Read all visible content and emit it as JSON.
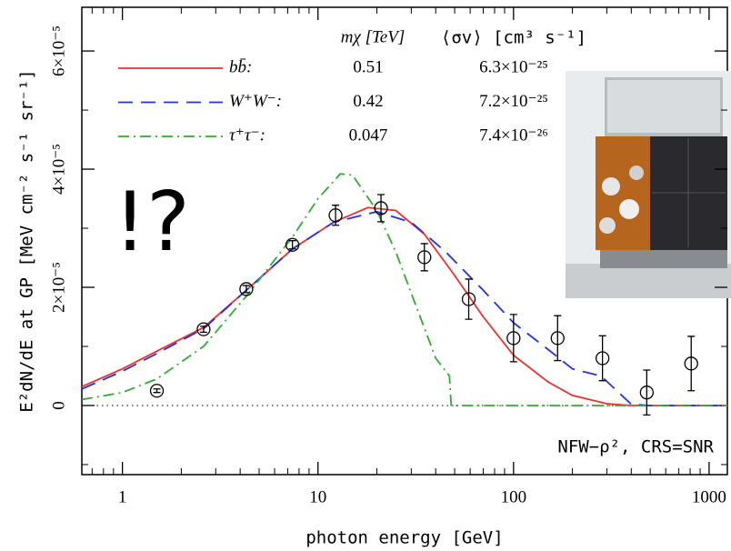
{
  "chart_data": {
    "type": "line",
    "x_label": "photon energy [GeV]",
    "y_label": "E²dN/dE at GP [MeV cm⁻² s⁻¹ sr⁻¹]",
    "xscale": "log",
    "xlim": [
      0.62,
      1240
    ],
    "xticks": [
      1,
      10,
      100,
      1000
    ],
    "ylim": [
      -1.17e-05,
      6.74e-05
    ],
    "yticks": [
      0,
      {
        "value": 2e-05,
        "label": "2×10⁻⁵"
      },
      {
        "value": 4e-05,
        "label": "4×10⁻⁵"
      },
      {
        "value": 6e-05,
        "label": "6×10⁻⁵"
      }
    ],
    "legend_headers": [
      "mχ [TeV]",
      "⟨σv⟩ [cm³ s⁻¹]"
    ],
    "annotations": [
      "NFW−ρ², CRS=SNR",
      "!?"
    ],
    "series": [
      {
        "name": "bb̄:",
        "mass": "0.51",
        "cross_section": "6.3×10⁻²⁵",
        "color": "#e8322f",
        "line_style": "solid",
        "x": [
          0.62,
          1,
          1.5,
          2.6,
          4.3,
          7.4,
          12,
          18,
          25,
          35,
          50,
          70,
          100,
          150,
          200,
          300,
          400,
          1240
        ],
        "values": [
          3.2e-06,
          6.2e-06,
          9.2e-06,
          1.32e-05,
          1.95e-05,
          2.65e-05,
          3.1e-05,
          3.35e-05,
          3.3e-05,
          2.9e-05,
          2.2e-05,
          1.5e-05,
          8.5e-06,
          4e-06,
          1.7e-06,
          3e-07,
          0,
          0
        ]
      },
      {
        "name": "W⁺W⁻:",
        "mass": "0.42",
        "cross_section": "7.2×10⁻²⁵",
        "color": "#2233dd",
        "line_style": "dashed",
        "x": [
          0.62,
          1,
          1.5,
          2.6,
          4.3,
          7.4,
          12,
          20,
          30,
          45,
          70,
          100,
          150,
          200,
          280,
          350,
          400,
          500,
          1240
        ],
        "values": [
          2.8e-06,
          5.8e-06,
          8.8e-06,
          1.3e-05,
          1.95e-05,
          2.65e-05,
          3.1e-05,
          3.28e-05,
          3.1e-05,
          2.6e-05,
          1.95e-05,
          1.4e-05,
          9.5e-06,
          6.2e-06,
          5e-06,
          2e-06,
          2e-07,
          0,
          0
        ]
      },
      {
        "name": "τ⁺τ⁻:",
        "mass": "0.047",
        "cross_section": "7.4×10⁻²⁶",
        "color": "#33aa33",
        "line_style": "dashdot",
        "x": [
          0.62,
          1,
          1.5,
          2.6,
          4.3,
          7.4,
          10,
          13,
          15,
          20,
          25,
          30,
          40,
          47,
          48,
          1240
        ],
        "values": [
          1e-06,
          2.2e-06,
          4.5e-06,
          1e-05,
          1.85e-05,
          2.85e-05,
          3.5e-05,
          3.92e-05,
          3.9e-05,
          3.3e-05,
          2.6e-05,
          1.9e-05,
          8e-06,
          5e-06,
          0,
          0
        ]
      }
    ],
    "points": {
      "x": [
        1.5,
        2.6,
        4.3,
        7.4,
        12.3,
        21,
        35,
        59,
        100,
        168,
        285,
        480,
        810
      ],
      "values": [
        2.5e-06,
        1.29e-05,
        1.97e-05,
        2.72e-05,
        3.22e-05,
        3.34e-05,
        2.51e-05,
        1.8e-05,
        1.14e-05,
        1.14e-05,
        8e-06,
        2.2e-06,
        7.1e-06
      ],
      "errors": [
        3e-07,
        5e-07,
        6e-07,
        7e-07,
        1.7e-06,
        2.3e-06,
        2.3e-06,
        3.4e-06,
        4e-06,
        3.8e-06,
        3.8e-06,
        3.8e-06,
        4.6e-06
      ]
    }
  }
}
